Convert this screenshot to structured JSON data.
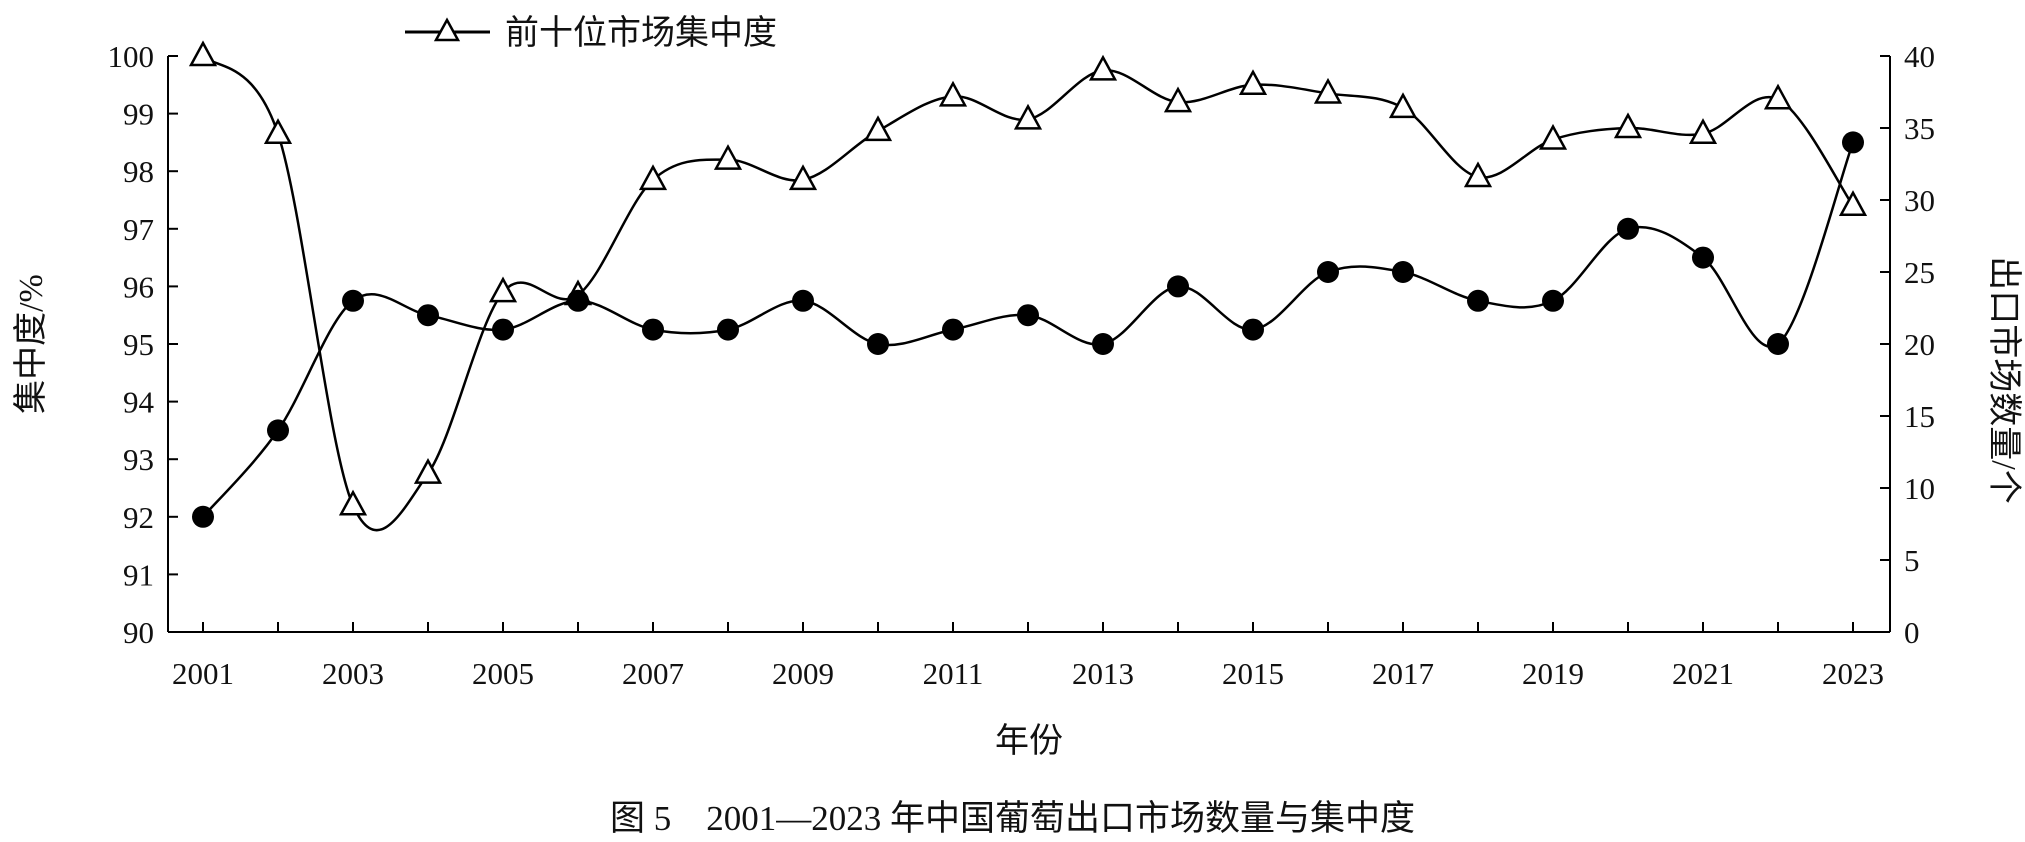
{
  "caption": "图 5　2001—2023 年中国葡萄出口市场数量与集中度",
  "chart_data": {
    "type": "line",
    "title": "",
    "xlabel": "年份",
    "ylabel": "集中度/%",
    "y2label": "出口市场数量/个",
    "x": [
      2001,
      2002,
      2003,
      2004,
      2005,
      2006,
      2007,
      2008,
      2009,
      2010,
      2011,
      2012,
      2013,
      2014,
      2015,
      2016,
      2017,
      2018,
      2019,
      2020,
      2021,
      2022,
      2023
    ],
    "x_tick_labels": [
      "2001",
      "2003",
      "2005",
      "2007",
      "2009",
      "2011",
      "2013",
      "2015",
      "2017",
      "2019",
      "2021",
      "2023"
    ],
    "ylim": [
      90,
      100
    ],
    "y_ticks": [
      90,
      91,
      92,
      93,
      94,
      95,
      96,
      97,
      98,
      99,
      100
    ],
    "y2lim": [
      0,
      40
    ],
    "y2_ticks": [
      0,
      5,
      10,
      15,
      20,
      25,
      30,
      35,
      40
    ],
    "legend_position": "top-left",
    "series": [
      {
        "name": "前十位市场集中度",
        "axis": "left",
        "marker": "open-triangle",
        "values": [
          100.0,
          98.65,
          92.2,
          92.75,
          95.9,
          95.85,
          97.85,
          98.2,
          97.85,
          98.7,
          99.3,
          98.9,
          99.75,
          99.2,
          99.5,
          99.35,
          99.1,
          97.9,
          98.55,
          98.75,
          98.65,
          99.25,
          97.4
        ]
      },
      {
        "name": "",
        "axis": "right",
        "marker": "filled-circle",
        "values": [
          8,
          14,
          23,
          22,
          21,
          23,
          21,
          21,
          23,
          20,
          21,
          22,
          20,
          24,
          21,
          25,
          25,
          23,
          23,
          28,
          26,
          20,
          34
        ]
      }
    ]
  }
}
